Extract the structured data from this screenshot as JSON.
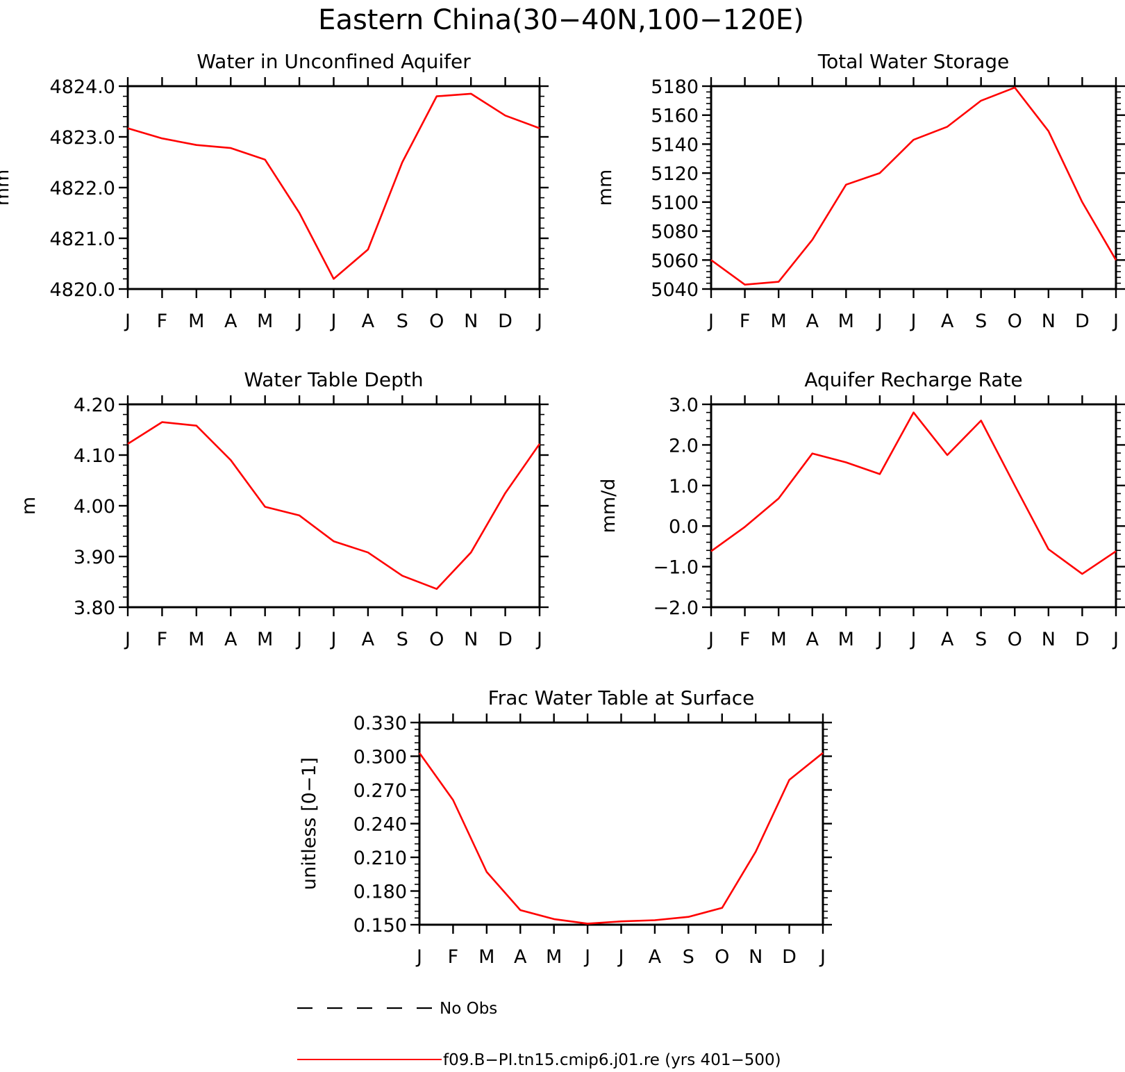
{
  "figure": {
    "title": "Eastern China(30−40N,100−120E)"
  },
  "colors": {
    "model_line": "#ff0000",
    "obs_line": "#000000"
  },
  "legend": {
    "obs_label": "No Obs",
    "model_label": "f09.B−PI.tn15.cmip6.j01.re (yrs 401−500)"
  },
  "chart_data": [
    {
      "type": "line",
      "title": "Water in Unconfined Aquifer",
      "ylabel": "mm",
      "x": [
        "J",
        "F",
        "M",
        "A",
        "M",
        "J",
        "J",
        "A",
        "S",
        "O",
        "N",
        "D",
        "J"
      ],
      "ylim": [
        4820.0,
        4824.0
      ],
      "yticks": [
        "4820.0",
        "4821.0",
        "4822.0",
        "4823.0",
        "4824.0"
      ],
      "series": [
        {
          "values": [
            4823.17,
            4822.97,
            4822.84,
            4822.78,
            4822.55,
            4821.5,
            4820.2,
            4820.78,
            4822.5,
            4823.8,
            4823.85,
            4823.42,
            4823.17
          ]
        }
      ]
    },
    {
      "type": "line",
      "title": "Total Water Storage",
      "ylabel": "mm",
      "x": [
        "J",
        "F",
        "M",
        "A",
        "M",
        "J",
        "J",
        "A",
        "S",
        "O",
        "N",
        "D",
        "J"
      ],
      "ylim": [
        5040,
        5180
      ],
      "yticks": [
        "5040",
        "5060",
        "5080",
        "5100",
        "5120",
        "5140",
        "5160",
        "5180"
      ],
      "series": [
        {
          "values": [
            5060,
            5043,
            5045,
            5074,
            5112,
            5120,
            5143,
            5152,
            5170,
            5179,
            5149,
            5100,
            5060
          ]
        }
      ]
    },
    {
      "type": "line",
      "title": "Water Table Depth",
      "ylabel": "m",
      "x": [
        "J",
        "F",
        "M",
        "A",
        "M",
        "J",
        "J",
        "A",
        "S",
        "O",
        "N",
        "D",
        "J"
      ],
      "ylim": [
        3.8,
        4.2
      ],
      "yticks": [
        "3.80",
        "3.90",
        "4.00",
        "4.10",
        "4.20"
      ],
      "series": [
        {
          "values": [
            4.122,
            4.165,
            4.158,
            4.09,
            3.998,
            3.981,
            3.93,
            3.908,
            3.862,
            3.836,
            3.908,
            4.025,
            4.122
          ]
        }
      ]
    },
    {
      "type": "line",
      "title": "Aquifer Recharge Rate",
      "ylabel": "mm/d",
      "x": [
        "J",
        "F",
        "M",
        "A",
        "M",
        "J",
        "J",
        "A",
        "S",
        "O",
        "N",
        "D",
        "J"
      ],
      "ylim": [
        -2.0,
        3.0
      ],
      "yticks": [
        "−2.0",
        "−1.0",
        "0.0",
        "1.0",
        "2.0",
        "3.0"
      ],
      "series": [
        {
          "values": [
            -0.62,
            -0.02,
            0.68,
            1.79,
            1.57,
            1.28,
            2.8,
            1.75,
            2.6,
            1.0,
            -0.57,
            -1.18,
            -0.62
          ]
        }
      ]
    },
    {
      "type": "line",
      "title": "Frac Water Table at Surface",
      "ylabel": "unitless [0−1]",
      "x": [
        "J",
        "F",
        "M",
        "A",
        "M",
        "J",
        "J",
        "A",
        "S",
        "O",
        "N",
        "D",
        "J"
      ],
      "ylim": [
        0.15,
        0.33
      ],
      "yticks": [
        "0.150",
        "0.180",
        "0.210",
        "0.240",
        "0.270",
        "0.300",
        "0.330"
      ],
      "series": [
        {
          "values": [
            0.303,
            0.261,
            0.197,
            0.163,
            0.155,
            0.151,
            0.153,
            0.154,
            0.157,
            0.165,
            0.215,
            0.279,
            0.303
          ]
        }
      ]
    }
  ]
}
